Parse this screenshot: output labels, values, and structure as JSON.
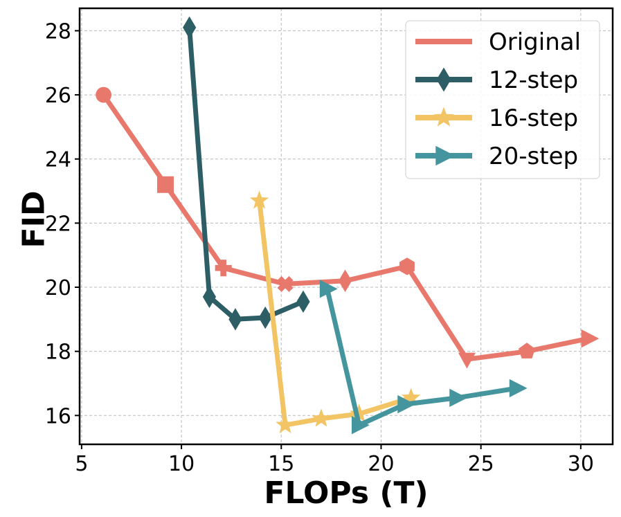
{
  "chart_data": {
    "type": "line",
    "title": "",
    "xlabel": "FLOPs (T)",
    "ylabel": "FID",
    "xlim": [
      4.9,
      31.6
    ],
    "ylim": [
      15.1,
      28.7
    ],
    "xticks": [
      5,
      10,
      15,
      20,
      25,
      30
    ],
    "yticks": [
      16,
      18,
      20,
      22,
      24,
      26,
      28
    ],
    "grid": true,
    "legend_position": "top-right",
    "series": [
      {
        "name": "Original",
        "color": "#e8786c",
        "x": [
          6.1,
          9.2,
          12.1,
          15.2,
          18.2,
          21.3,
          24.3,
          27.3,
          30.4
        ],
        "y": [
          26.0,
          23.2,
          20.6,
          20.1,
          20.2,
          20.65,
          17.75,
          18.0,
          18.4
        ],
        "markers": [
          "circle",
          "square",
          "plus",
          "x",
          "diamond",
          "hexagon",
          "triangle-down",
          "pentagon",
          "triangle-right"
        ]
      },
      {
        "name": "12-step",
        "color": "#2d5e66",
        "x": [
          10.4,
          11.4,
          12.7,
          14.2,
          16.1
        ],
        "y": [
          28.1,
          19.7,
          19.0,
          19.05,
          19.55
        ],
        "markers": [
          "diamond",
          "diamond",
          "diamond",
          "diamond",
          "diamond"
        ]
      },
      {
        "name": "16-step",
        "color": "#f2c464",
        "x": [
          13.9,
          15.2,
          17.0,
          18.9,
          21.5
        ],
        "y": [
          22.7,
          15.7,
          15.9,
          16.05,
          16.55
        ],
        "markers": [
          "star",
          "star",
          "star",
          "star",
          "star"
        ]
      },
      {
        "name": "20-step",
        "color": "#44959d",
        "x": [
          17.3,
          18.9,
          21.2,
          23.8,
          26.8
        ],
        "y": [
          19.95,
          15.7,
          16.35,
          16.55,
          16.85
        ],
        "markers": [
          "triangle-right",
          "triangle-right",
          "triangle-right",
          "triangle-right",
          "triangle-right"
        ]
      }
    ]
  }
}
